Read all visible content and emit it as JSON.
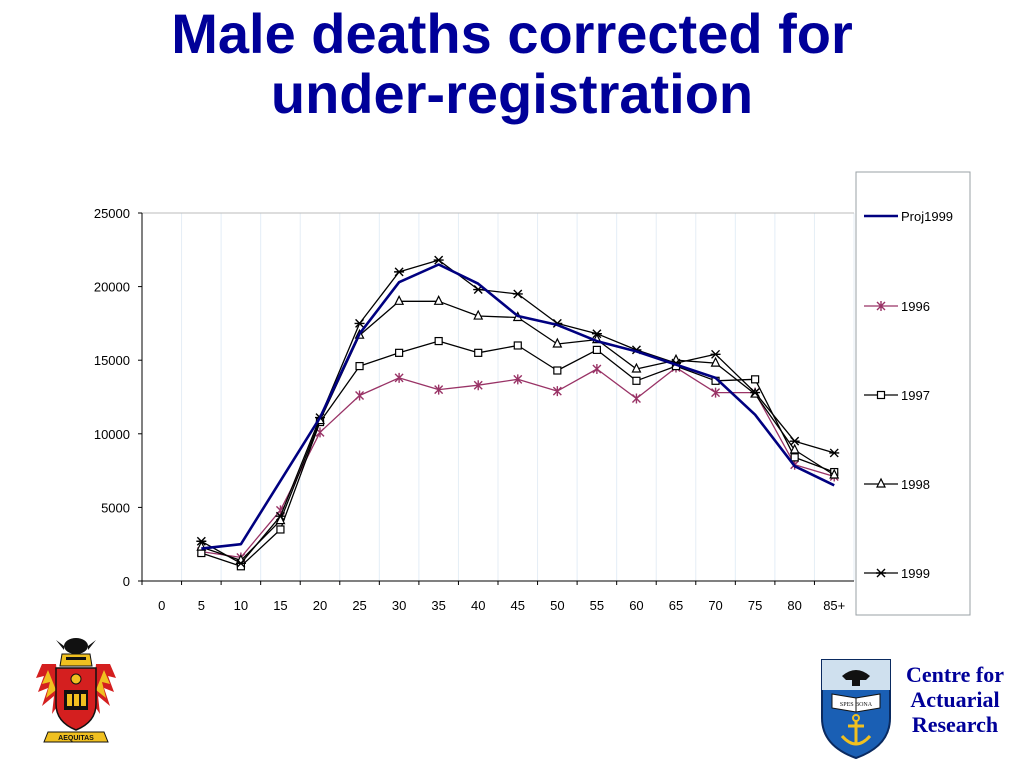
{
  "slide": {
    "title_line1": "Male deaths corrected for",
    "title_line2": "under-registration"
  },
  "chart_data": {
    "type": "line",
    "title": "Male deaths corrected for under-registration",
    "xlabel": "",
    "ylabel": "",
    "categories": [
      "0",
      "5",
      "10",
      "15",
      "20",
      "25",
      "30",
      "35",
      "40",
      "45",
      "50",
      "55",
      "60",
      "65",
      "70",
      "75",
      "80",
      "85+"
    ],
    "ylim": [
      0,
      25000
    ],
    "yticks": [
      0,
      5000,
      10000,
      15000,
      20000,
      25000
    ],
    "grid": "vertical",
    "legend_position": "right",
    "series": [
      {
        "name": "Proj1999",
        "color": "#000080",
        "marker": "none",
        "values": [
          null,
          2200,
          2500,
          6800,
          11100,
          16800,
          20300,
          21500,
          20200,
          18000,
          17400,
          16300,
          15600,
          14700,
          13800,
          11300,
          7800,
          6500
        ]
      },
      {
        "name": "1996",
        "color": "#993366",
        "marker": "star",
        "values": [
          null,
          2000,
          1600,
          4800,
          10100,
          12600,
          13800,
          13000,
          13300,
          13700,
          12900,
          14400,
          12400,
          14500,
          12800,
          12800,
          7900,
          7100
        ]
      },
      {
        "name": "1997",
        "color": "#000000",
        "marker": "square",
        "values": [
          null,
          1900,
          1000,
          3500,
          10800,
          14600,
          15500,
          16300,
          15500,
          16000,
          14300,
          15700,
          13600,
          14600,
          13600,
          13700,
          8400,
          7400
        ]
      },
      {
        "name": "1998",
        "color": "#000000",
        "marker": "triangle",
        "values": [
          null,
          2300,
          1400,
          4100,
          10900,
          16700,
          19000,
          19000,
          18000,
          17900,
          16100,
          16400,
          14400,
          15000,
          14800,
          12700,
          8900,
          7200
        ]
      },
      {
        "name": "1999",
        "color": "#000000",
        "marker": "asterisk",
        "values": [
          null,
          2700,
          1200,
          4400,
          11100,
          17500,
          21000,
          21800,
          19800,
          19500,
          17500,
          16800,
          15700,
          14800,
          15400,
          12800,
          9500,
          8700
        ]
      }
    ]
  },
  "logos": {
    "crest_icon": "heraldic-crest-icon",
    "uct_icon": "uct-shield-icon",
    "crest_motto": "AEQUITAS",
    "uct_book_text": "SPES BONA"
  },
  "branding": {
    "line1": "Centre for",
    "line2": "Actuarial",
    "line3": "Research"
  }
}
